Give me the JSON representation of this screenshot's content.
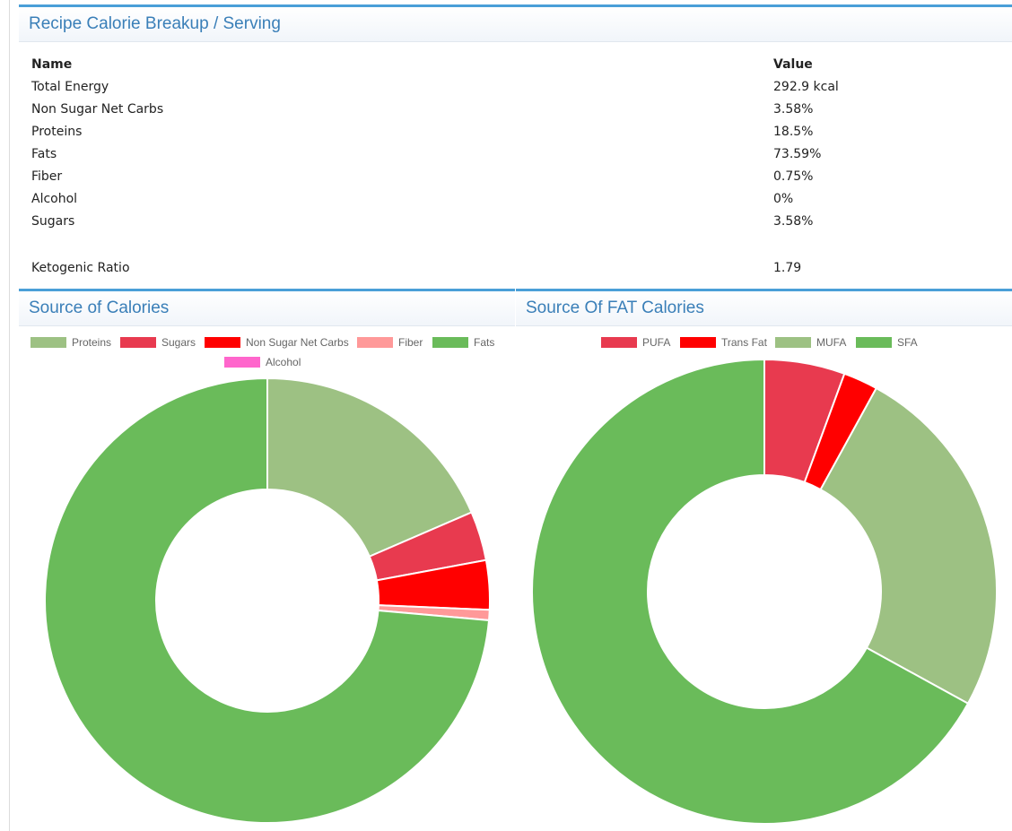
{
  "breakup": {
    "title": "Recipe Calorie Breakup / Serving",
    "header": {
      "name": "Name",
      "value": "Value"
    },
    "rows": [
      {
        "name": "Total Energy",
        "value": "292.9 kcal"
      },
      {
        "name": "Non Sugar Net Carbs",
        "value": "3.58%"
      },
      {
        "name": "Proteins",
        "value": "18.5%"
      },
      {
        "name": "Fats",
        "value": "73.59%"
      },
      {
        "name": "Fiber",
        "value": "0.75%"
      },
      {
        "name": "Alcohol",
        "value": "0%"
      },
      {
        "name": "Sugars",
        "value": "3.58%"
      }
    ],
    "ketogenic": {
      "name": "Ketogenic Ratio",
      "value": "1.79"
    }
  },
  "chart_data": [
    {
      "type": "pie",
      "title": "Source of Calories",
      "legend_position": "top",
      "categories": [
        "Proteins",
        "Sugars",
        "Non Sugar Net Carbs",
        "Fiber",
        "Fats",
        "Alcohol"
      ],
      "values": [
        18.5,
        3.58,
        3.58,
        0.75,
        73.59,
        0
      ],
      "colors": [
        "#9dc183",
        "#e83a4f",
        "#ff0000",
        "#ff9999",
        "#6abb5a",
        "#ff66cc"
      ]
    },
    {
      "type": "pie",
      "title": "Source Of FAT Calories",
      "legend_position": "top",
      "categories": [
        "PUFA",
        "Trans Fat",
        "MUFA",
        "SFA"
      ],
      "values": [
        5.6,
        2.4,
        25.0,
        67.0
      ],
      "colors": [
        "#e83a4f",
        "#ff0000",
        "#9dc183",
        "#6abb5a"
      ]
    }
  ]
}
